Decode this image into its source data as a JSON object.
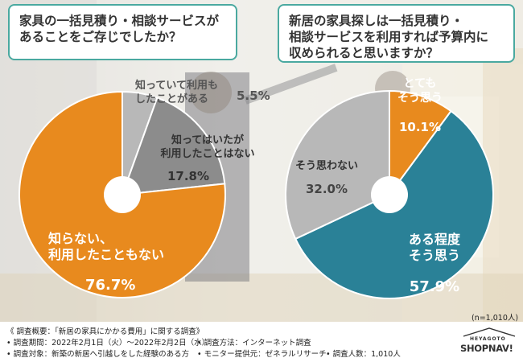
{
  "questions": {
    "left": [
      "家具の一括見積り・相談サービスが",
      "あることをご存じでしたか？"
    ],
    "right": [
      "新居の家具探しは一括見積り・",
      "相談サービスを利用すれば予算内に",
      "収められると思いますか？"
    ]
  },
  "chart_data": [
    {
      "type": "pie",
      "title": "家具の一括見積り・相談サービスがあることをご存じでしたか？",
      "slices": [
        {
          "label": "知っていて利用もしたことがある",
          "label_lines": [
            "知っていて利用も",
            "したことがある"
          ],
          "value": 5.5,
          "value_label": "5.5%",
          "color": "#b8b8b8"
        },
        {
          "label": "知ってはいたが利用したことはない",
          "label_lines": [
            "知ってはいたが",
            "利用したことはない"
          ],
          "value": 17.8,
          "value_label": "17.8%",
          "color": "#8c8c8c"
        },
        {
          "label": "知らない、利用したこともない",
          "label_lines": [
            "知らない、",
            "利用したこともない"
          ],
          "value": 76.7,
          "value_label": "76.7%",
          "color": "#e88a1e"
        }
      ]
    },
    {
      "type": "pie",
      "title": "新居の家具探しは一括見積り・相談サービスを利用すれば予算内に収められると思いますか？",
      "slices": [
        {
          "label": "とてもそう思う",
          "label_lines": [
            "とても",
            "そう思う"
          ],
          "value": 10.1,
          "value_label": "10.1%",
          "color": "#e88a1e"
        },
        {
          "label": "ある程度そう思う",
          "label_lines": [
            "ある程度",
            "そう思う"
          ],
          "value": 57.9,
          "value_label": "57.9%",
          "color": "#2a8197"
        },
        {
          "label": "そう思わない",
          "label_lines": [
            "そう思わない"
          ],
          "value": 32.0,
          "value_label": "32.0%",
          "color": "#b8b8b8"
        }
      ]
    }
  ],
  "sample_note": "(n=1,010人)",
  "footer": {
    "overview": "《 調査概要：「新居の家具にかかる費用」に関する調査》",
    "period": "• 調査期間：2022年2月1日（火）〜2022年2月2日（水）",
    "method": "• 調査方法：インターネット調査",
    "target": "• 調査対象：新築の新居へ引越しをした経験のある方",
    "provider": "• モニター提供元：ゼネラルリサーチ",
    "count": "• 調査人数：1,010人"
  },
  "logo": {
    "top": "HEYAGOTO",
    "main": "SHOPNAV!"
  }
}
